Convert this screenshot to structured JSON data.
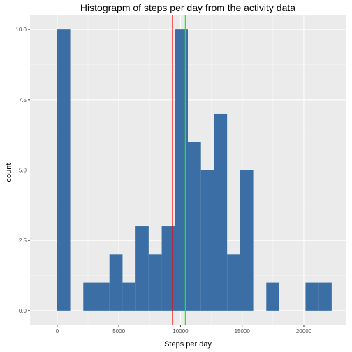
{
  "chart_data": {
    "type": "bar",
    "title": "Histograpm of steps per day from the activity data",
    "xlabel": "Steps per day",
    "ylabel": "count",
    "xlim": [
      -2200,
      23400
    ],
    "ylim": [
      -0.5,
      10.5
    ],
    "x_ticks": [
      0,
      5000,
      10000,
      15000,
      20000
    ],
    "x_tick_labels": [
      "0",
      "5000",
      "10000",
      "15000",
      "20000"
    ],
    "y_ticks": [
      0,
      2.5,
      5,
      7.5,
      10
    ],
    "y_tick_labels": [
      "0.0",
      "2.5",
      "5.0",
      "7.5",
      "10.0"
    ],
    "bin_width": 1060,
    "bins": [
      {
        "x0": 0,
        "x1": 1060,
        "count": 10
      },
      {
        "x0": 1060,
        "x1": 2120,
        "count": 0
      },
      {
        "x0": 2120,
        "x1": 3180,
        "count": 1
      },
      {
        "x0": 3180,
        "x1": 4240,
        "count": 1
      },
      {
        "x0": 4240,
        "x1": 5300,
        "count": 2
      },
      {
        "x0": 5300,
        "x1": 6360,
        "count": 1
      },
      {
        "x0": 6360,
        "x1": 7420,
        "count": 3
      },
      {
        "x0": 7420,
        "x1": 8480,
        "count": 2
      },
      {
        "x0": 8480,
        "x1": 9540,
        "count": 3
      },
      {
        "x0": 9540,
        "x1": 10600,
        "count": 10
      },
      {
        "x0": 10600,
        "x1": 11660,
        "count": 6
      },
      {
        "x0": 11660,
        "x1": 12720,
        "count": 5
      },
      {
        "x0": 12720,
        "x1": 13780,
        "count": 7
      },
      {
        "x0": 13780,
        "x1": 14840,
        "count": 2
      },
      {
        "x0": 14840,
        "x1": 15900,
        "count": 5
      },
      {
        "x0": 15900,
        "x1": 16960,
        "count": 0
      },
      {
        "x0": 16960,
        "x1": 18020,
        "count": 1
      },
      {
        "x0": 18020,
        "x1": 19080,
        "count": 0
      },
      {
        "x0": 19080,
        "x1": 20140,
        "count": 0
      },
      {
        "x0": 20140,
        "x1": 21200,
        "count": 1
      },
      {
        "x0": 21200,
        "x1": 22260,
        "count": 1
      }
    ],
    "vlines": [
      {
        "x": 9354,
        "color": "#ff0000"
      },
      {
        "x": 10395,
        "color": "#00ff00"
      }
    ],
    "grid": true,
    "colors": {
      "bar": "#3a6ea5",
      "panel": "#ebebeb",
      "grid_major": "#ffffff",
      "grid_minor": "#f5f5f5"
    }
  }
}
